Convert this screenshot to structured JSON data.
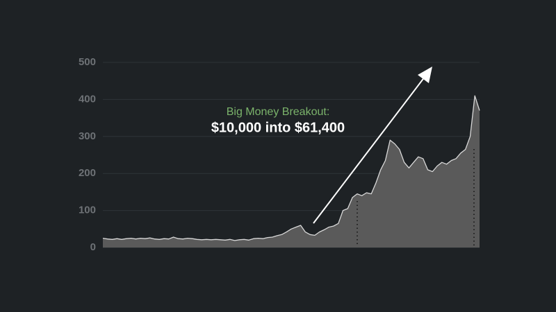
{
  "chart_data": {
    "type": "area",
    "title": "Big Money Breakout:",
    "subtitle": "$10,000 into $61,400",
    "categories": [
      null,
      null,
      null,
      null,
      null,
      null,
      null,
      null,
      null,
      null,
      null,
      null,
      null,
      null,
      null,
      null,
      null,
      null,
      null,
      null,
      null,
      null,
      null,
      null,
      null,
      null,
      null,
      null,
      null,
      null,
      null,
      null,
      null,
      null,
      null,
      null,
      null,
      null,
      null,
      null,
      null,
      null,
      null,
      null,
      null,
      null,
      null,
      null,
      null,
      null,
      null,
      null,
      null,
      null,
      null,
      null,
      null,
      null,
      null,
      null,
      null,
      null,
      null,
      null,
      null,
      null,
      null,
      null,
      null,
      null,
      null,
      null,
      null,
      null,
      null,
      null,
      null,
      null,
      null,
      null,
      null
    ],
    "values": [
      25,
      23,
      22,
      24,
      22,
      24,
      25,
      23,
      25,
      24,
      26,
      23,
      22,
      24,
      23,
      28,
      24,
      23,
      25,
      24,
      22,
      21,
      22,
      21,
      22,
      21,
      20,
      22,
      19,
      21,
      22,
      20,
      24,
      25,
      24,
      27,
      28,
      32,
      35,
      42,
      50,
      55,
      60,
      42,
      35,
      33,
      42,
      48,
      55,
      58,
      65,
      100,
      105,
      135,
      145,
      140,
      148,
      145,
      175,
      210,
      235,
      290,
      280,
      265,
      230,
      215,
      230,
      245,
      240,
      210,
      205,
      220,
      230,
      225,
      235,
      240,
      255,
      265,
      300,
      410,
      370
    ],
    "color": "#5a5a5a",
    "ylim": [
      0,
      500
    ],
    "yticks": [
      0,
      100,
      200,
      300,
      400,
      500
    ],
    "grid": true
  }
}
